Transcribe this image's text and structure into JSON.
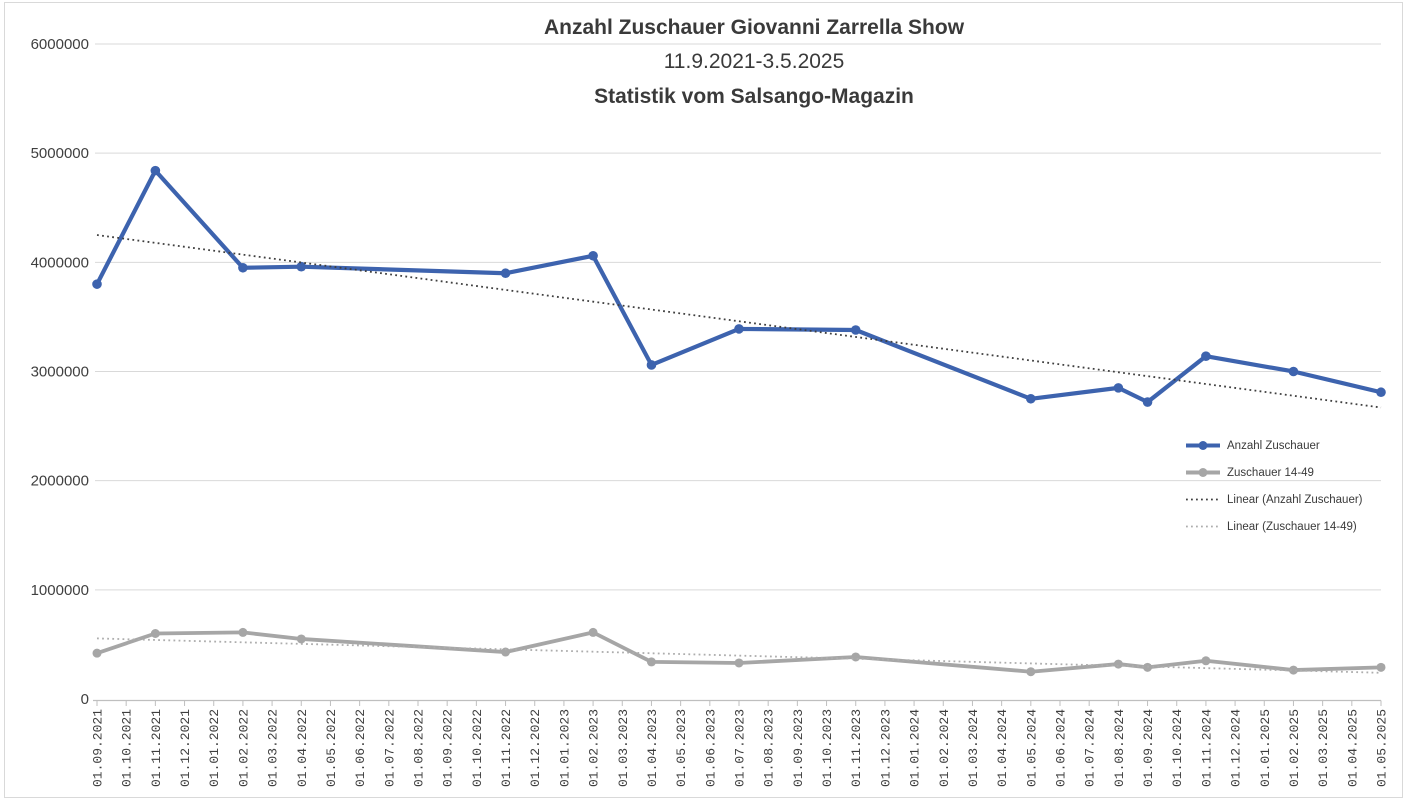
{
  "title": {
    "line1": "Anzahl Zuschauer Giovanni Zarrella Show",
    "line2": "11.9.2021-3.5.2025",
    "line3": "Statistik vom Salsango-Magazin"
  },
  "colors": {
    "background": "#ffffff",
    "border": "#d9d9d9",
    "grid": "#d9d9d9",
    "axis": "#bfbfbf",
    "text": "#3f3f3f",
    "series_blue": "#3d63ae",
    "series_gray": "#a6a6a6",
    "trend_dark": "#3f3f3f",
    "trend_light": "#adadad"
  },
  "chart_data": {
    "type": "line",
    "title": "Anzahl Zuschauer Giovanni Zarrella Show",
    "subtitle": "11.9.2021-3.5.2025",
    "source_note": "Statistik vom Salsango-Magazin",
    "grid": true,
    "legend_position": "middle-right",
    "ylim": [
      0,
      6000000
    ],
    "ytick_step": 1000000,
    "yticks": [
      "0",
      "1000000",
      "2000000",
      "3000000",
      "4000000",
      "5000000",
      "6000000"
    ],
    "categories": [
      "01.09.2021",
      "01.10.2021",
      "01.11.2021",
      "01.12.2021",
      "01.01.2022",
      "01.02.2022",
      "01.03.2022",
      "01.04.2022",
      "01.05.2022",
      "01.06.2022",
      "01.07.2022",
      "01.08.2022",
      "01.09.2022",
      "01.10.2022",
      "01.11.2022",
      "01.12.2022",
      "01.01.2023",
      "01.02.2023",
      "01.03.2023",
      "01.04.2023",
      "01.05.2023",
      "01.06.2023",
      "01.07.2023",
      "01.08.2023",
      "01.09.2023",
      "01.10.2023",
      "01.11.2023",
      "01.12.2023",
      "01.01.2024",
      "01.02.2024",
      "01.03.2024",
      "01.04.2024",
      "01.05.2024",
      "01.06.2024",
      "01.07.2024",
      "01.08.2024",
      "01.09.2024",
      "01.10.2024",
      "01.11.2024",
      "01.12.2024",
      "01.01.2025",
      "01.02.2025",
      "01.03.2025",
      "01.04.2025",
      "01.05.2025"
    ],
    "series": [
      {
        "name": "Anzahl Zuschauer",
        "color": "#3d63ae",
        "marker": "circle",
        "points": [
          {
            "i": 0,
            "category": "01.09.2021",
            "value": 3800000
          },
          {
            "i": 2,
            "category": "01.11.2021",
            "value": 4840000
          },
          {
            "i": 5,
            "category": "01.02.2022",
            "value": 3950000
          },
          {
            "i": 7,
            "category": "01.04.2022",
            "value": 3960000
          },
          {
            "i": 14,
            "category": "01.11.2022",
            "value": 3900000
          },
          {
            "i": 17,
            "category": "01.02.2023",
            "value": 4060000
          },
          {
            "i": 19,
            "category": "01.04.2023",
            "value": 3060000
          },
          {
            "i": 22,
            "category": "01.07.2023",
            "value": 3390000
          },
          {
            "i": 26,
            "category": "01.11.2023",
            "value": 3380000
          },
          {
            "i": 32,
            "category": "01.05.2024",
            "value": 2750000
          },
          {
            "i": 35,
            "category": "01.08.2024",
            "value": 2850000
          },
          {
            "i": 36,
            "category": "01.09.2024",
            "value": 2720000
          },
          {
            "i": 38,
            "category": "01.11.2024",
            "value": 3140000
          },
          {
            "i": 41,
            "category": "01.02.2025",
            "value": 3000000
          },
          {
            "i": 44,
            "category": "01.05.2025",
            "value": 2810000
          }
        ]
      },
      {
        "name": "Zuschauer 14-49",
        "color": "#a6a6a6",
        "marker": "circle",
        "points": [
          {
            "i": 0,
            "category": "01.09.2021",
            "value": 420000
          },
          {
            "i": 2,
            "category": "01.11.2021",
            "value": 600000
          },
          {
            "i": 5,
            "category": "01.02.2022",
            "value": 610000
          },
          {
            "i": 7,
            "category": "01.04.2022",
            "value": 550000
          },
          {
            "i": 14,
            "category": "01.11.2022",
            "value": 430000
          },
          {
            "i": 17,
            "category": "01.02.2023",
            "value": 610000
          },
          {
            "i": 19,
            "category": "01.04.2023",
            "value": 340000
          },
          {
            "i": 22,
            "category": "01.07.2023",
            "value": 330000
          },
          {
            "i": 26,
            "category": "01.11.2023",
            "value": 385000
          },
          {
            "i": 32,
            "category": "01.05.2024",
            "value": 250000
          },
          {
            "i": 35,
            "category": "01.08.2024",
            "value": 320000
          },
          {
            "i": 36,
            "category": "01.09.2024",
            "value": 290000
          },
          {
            "i": 38,
            "category": "01.11.2024",
            "value": 350000
          },
          {
            "i": 41,
            "category": "01.02.2025",
            "value": 265000
          },
          {
            "i": 44,
            "category": "01.05.2025",
            "value": 290000
          }
        ]
      }
    ],
    "trendlines": [
      {
        "name": "Linear (Anzahl Zuschauer)",
        "color": "#3f3f3f",
        "style": "dotted",
        "start_value": 4250000,
        "end_value": 2670000
      },
      {
        "name": "Linear (Zuschauer 14-49)",
        "color": "#adadad",
        "style": "dotted",
        "start_value": 555000,
        "end_value": 240000
      }
    ]
  }
}
